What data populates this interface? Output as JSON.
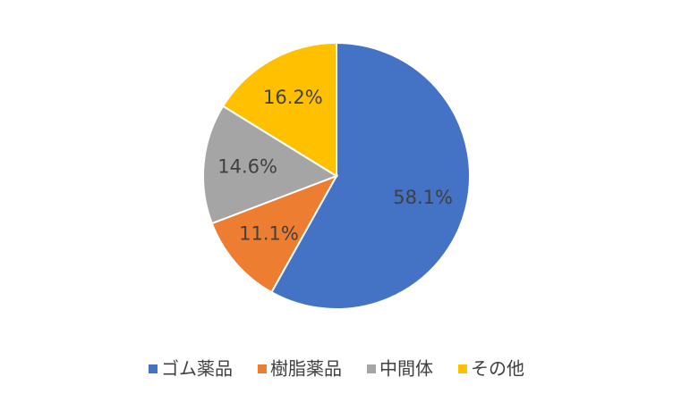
{
  "chart_data": {
    "type": "pie",
    "categories": [
      "ゴム薬品",
      "樹脂薬品",
      "中間体",
      "その他"
    ],
    "values": [
      58.1,
      11.1,
      14.6,
      16.2
    ],
    "value_labels": [
      "58.1%",
      "11.1%",
      "14.6%",
      "16.2%"
    ],
    "colors": [
      "#4472c4",
      "#ed7d31",
      "#a5a5a5",
      "#ffc000"
    ],
    "legend": "bottom"
  }
}
